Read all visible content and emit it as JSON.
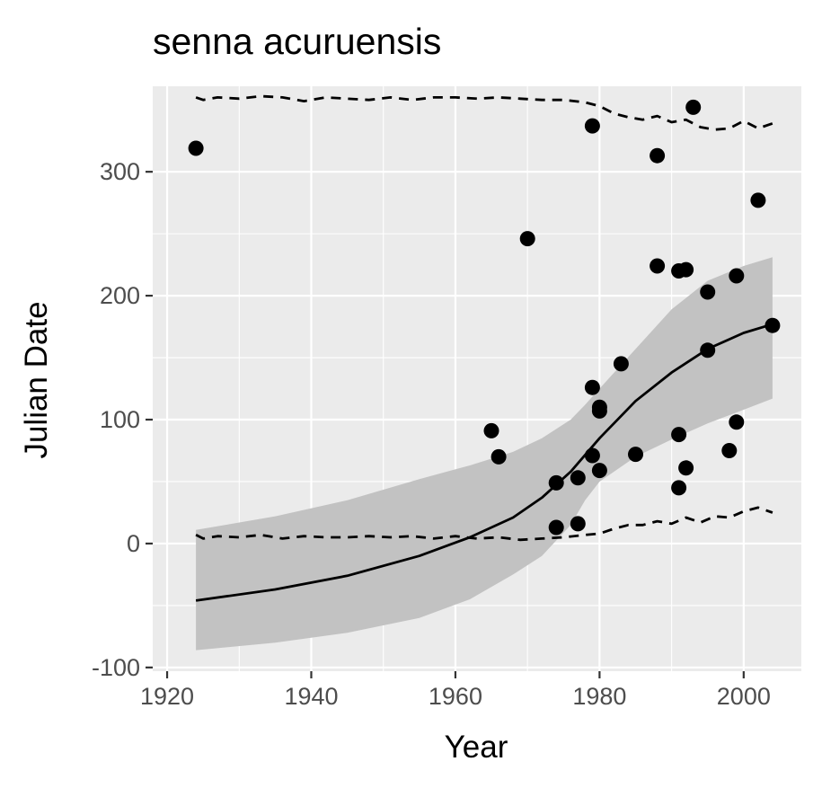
{
  "chart_data": {
    "type": "scatter",
    "title": "senna acuruensis",
    "xlabel": "Year",
    "ylabel": "Julian Date",
    "xlim": [
      1918,
      2008
    ],
    "ylim": [
      -103,
      369
    ],
    "x_ticks": [
      1920,
      1940,
      1960,
      1980,
      2000
    ],
    "y_ticks": [
      -100,
      0,
      100,
      200,
      300
    ],
    "grid": true,
    "background": "#ebebeb",
    "colors": {
      "points": "#000000",
      "fit_line": "#000000",
      "ribbon": "#c2c2c2",
      "grid": "#ffffff"
    },
    "points": [
      {
        "x": 1924,
        "y": 319
      },
      {
        "x": 1965,
        "y": 91
      },
      {
        "x": 1966,
        "y": 70
      },
      {
        "x": 1970,
        "y": 246
      },
      {
        "x": 1974,
        "y": 49
      },
      {
        "x": 1974,
        "y": 13
      },
      {
        "x": 1977,
        "y": 53
      },
      {
        "x": 1977,
        "y": 16
      },
      {
        "x": 1979,
        "y": 337
      },
      {
        "x": 1979,
        "y": 126
      },
      {
        "x": 1979,
        "y": 71
      },
      {
        "x": 1980,
        "y": 110
      },
      {
        "x": 1980,
        "y": 107
      },
      {
        "x": 1980,
        "y": 59
      },
      {
        "x": 1983,
        "y": 145
      },
      {
        "x": 1985,
        "y": 72
      },
      {
        "x": 1988,
        "y": 313
      },
      {
        "x": 1988,
        "y": 224
      },
      {
        "x": 1991,
        "y": 220
      },
      {
        "x": 1991,
        "y": 88
      },
      {
        "x": 1991,
        "y": 45
      },
      {
        "x": 1992,
        "y": 221
      },
      {
        "x": 1992,
        "y": 61
      },
      {
        "x": 1993,
        "y": 352
      },
      {
        "x": 1995,
        "y": 203
      },
      {
        "x": 1995,
        "y": 156
      },
      {
        "x": 1998,
        "y": 75
      },
      {
        "x": 1999,
        "y": 216
      },
      {
        "x": 1999,
        "y": 98
      },
      {
        "x": 2002,
        "y": 277
      },
      {
        "x": 2004,
        "y": 176
      }
    ],
    "fit_line": {
      "x": [
        1924,
        1935,
        1945,
        1955,
        1962,
        1968,
        1972,
        1976,
        1980,
        1985,
        1990,
        1995,
        2000,
        2004
      ],
      "y": [
        -46,
        -37,
        -26,
        -10,
        5,
        21,
        37,
        58,
        85,
        115,
        138,
        157,
        170,
        177
      ]
    },
    "ribbon": {
      "x": [
        1924,
        1935,
        1945,
        1955,
        1962,
        1968,
        1972,
        1976,
        1978,
        1980,
        1985,
        1990,
        1995,
        2000,
        2004
      ],
      "upper": [
        11,
        22,
        35,
        52,
        63,
        74,
        85,
        100,
        112,
        125,
        157,
        189,
        212,
        224,
        231
      ],
      "lower": [
        -86,
        -80,
        -72,
        -60,
        -45,
        -25,
        -10,
        15,
        35,
        50,
        70,
        84,
        97,
        108,
        117
      ]
    },
    "upper_dashed": {
      "x": [
        1924,
        1925,
        1927,
        1930,
        1933,
        1936,
        1939,
        1942,
        1945,
        1948,
        1951,
        1954,
        1957,
        1960,
        1963,
        1966,
        1969,
        1972,
        1975,
        1978,
        1980,
        1982,
        1984,
        1986,
        1988,
        1990,
        1992,
        1994,
        1996,
        1998,
        2000,
        2002,
        2004
      ],
      "y": [
        360,
        358,
        360,
        359,
        361,
        360,
        357,
        360,
        359,
        358,
        360,
        358,
        360,
        360,
        359,
        360,
        359,
        358,
        358,
        356,
        353,
        347,
        344,
        342,
        345,
        340,
        342,
        336,
        334,
        335,
        341,
        335,
        339
      ]
    },
    "lower_dashed": {
      "x": [
        1924,
        1925,
        1927,
        1930,
        1933,
        1936,
        1939,
        1942,
        1945,
        1948,
        1951,
        1954,
        1957,
        1960,
        1963,
        1966,
        1969,
        1972,
        1975,
        1978,
        1980,
        1982,
        1984,
        1986,
        1988,
        1990,
        1992,
        1994,
        1996,
        1998,
        2000,
        2002,
        2004
      ],
      "y": [
        7,
        4,
        6,
        5,
        7,
        4,
        6,
        5,
        5,
        6,
        5,
        6,
        4,
        6,
        4,
        5,
        3,
        4,
        5,
        7,
        8,
        12,
        15,
        15,
        18,
        16,
        21,
        17,
        22,
        21,
        26,
        29,
        25
      ]
    }
  }
}
